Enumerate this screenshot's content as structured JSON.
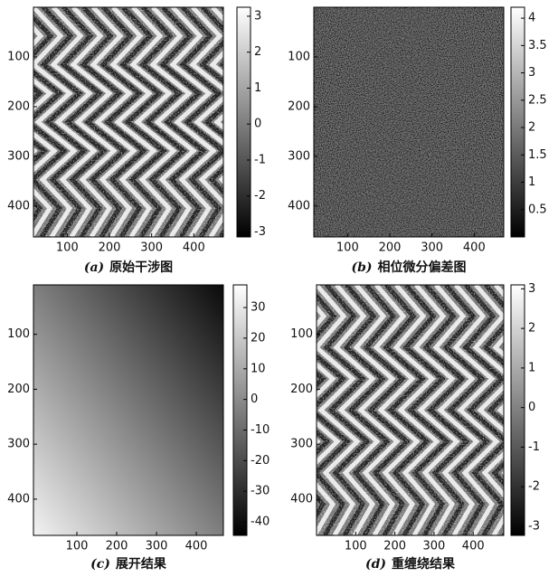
{
  "chart_data": [
    {
      "type": "image",
      "panel": "(a)",
      "caption": "原始干涉图",
      "xlim": [
        20,
        470
      ],
      "ylim": [
        0,
        462
      ],
      "xticks": [
        100,
        200,
        300,
        400
      ],
      "yticks": [
        100,
        200,
        300,
        400
      ],
      "clim": [
        -3.14,
        3.25
      ],
      "cticks": [
        -3,
        -2,
        -1,
        0,
        1,
        2,
        3
      ],
      "style": "fringes"
    },
    {
      "type": "image",
      "panel": "(b)",
      "caption": "相位微分偏差图",
      "xlim": [
        20,
        470
      ],
      "ylim": [
        0,
        462
      ],
      "xticks": [
        100,
        200,
        300,
        400
      ],
      "yticks": [
        100,
        200,
        300,
        400
      ],
      "clim": [
        0,
        4.2
      ],
      "cticks": [
        0.5,
        1,
        1.5,
        2,
        2.5,
        3,
        3.5,
        4
      ],
      "style": "noise"
    },
    {
      "type": "image",
      "panel": "(c)",
      "caption": "展开结果",
      "xlim": [
        -9,
        468
      ],
      "ylim": [
        10,
        466
      ],
      "xticks": [
        100,
        200,
        300,
        400
      ],
      "yticks": [
        100,
        200,
        300,
        400
      ],
      "clim": [
        -44.4,
        37.4
      ],
      "cticks": [
        -40,
        -30,
        -20,
        -10,
        0,
        10,
        20,
        30
      ],
      "style": "gradient"
    },
    {
      "type": "image",
      "panel": "(d)",
      "caption": "重缠绕结果",
      "xlim": [
        0,
        478
      ],
      "ylim": [
        10,
        466
      ],
      "xticks": [
        100,
        200,
        300,
        400
      ],
      "yticks": [
        100,
        200,
        300,
        400
      ],
      "clim": [
        -3.23,
        3.1
      ],
      "cticks": [
        -3,
        -2,
        -1,
        0,
        1,
        2,
        3
      ],
      "style": "fringes"
    }
  ]
}
